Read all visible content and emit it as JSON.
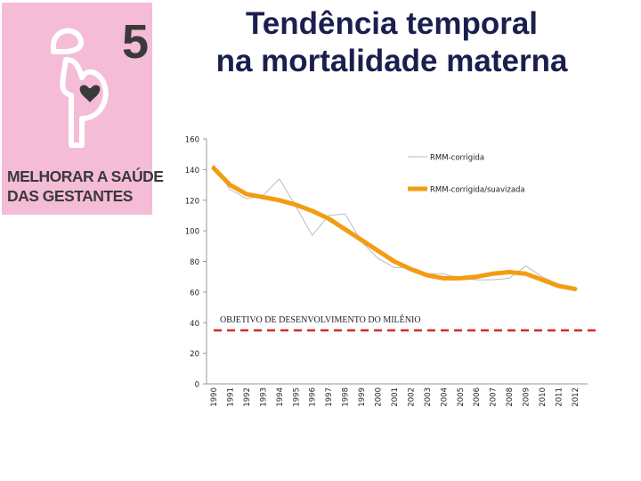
{
  "header": {
    "title_line1": "Tendência temporal",
    "title_line2": "na mortalidade materna"
  },
  "logo": {
    "number": "5",
    "caption_line1": "MELHORAR A SAÚDE",
    "caption_line2": "DAS GESTANTES",
    "background": "#f4bcd6",
    "icon": "pregnant-woman-heart-icon"
  },
  "chart_data": {
    "type": "line",
    "x": [
      "1990",
      "1991",
      "1992",
      "1993",
      "1994",
      "1995",
      "1996",
      "1997",
      "1998",
      "1999",
      "2000",
      "2001",
      "2002",
      "2003",
      "2004",
      "2005",
      "2006",
      "2007",
      "2008",
      "2009",
      "2010",
      "2011",
      "2012"
    ],
    "ylim": [
      0,
      160
    ],
    "yticks": [
      0,
      20,
      40,
      60,
      80,
      100,
      120,
      140,
      160
    ],
    "series": [
      {
        "name": "RMM-corrigida",
        "color": "#bbbbbb",
        "values": [
          143,
          127,
          121,
          123,
          134,
          116,
          97,
          110,
          111,
          93,
          82,
          76,
          76,
          72,
          72,
          69,
          68,
          68,
          69,
          77,
          70,
          65,
          62
        ]
      },
      {
        "name": "RMM-corrigida/suavizada",
        "color": "#f39c12",
        "values": [
          141,
          130,
          124,
          122,
          120,
          117,
          113,
          108,
          101,
          94,
          87,
          80,
          75,
          71,
          69,
          69,
          70,
          72,
          73,
          72,
          68,
          64,
          62
        ]
      }
    ],
    "target": {
      "label": "OBJETIVO DE DESENVOLVIMENTO DO MILÊNIO",
      "value": 35,
      "color": "#d62728"
    },
    "legend_position": "top-right",
    "grid": false
  }
}
